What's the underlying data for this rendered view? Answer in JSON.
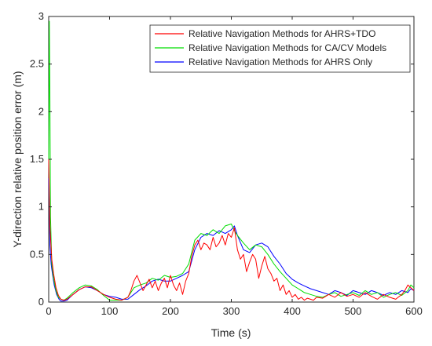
{
  "chart_data": {
    "type": "line",
    "title": "",
    "xlabel": "Time (s)",
    "ylabel": "Y-direction relative position error (m)",
    "xlim": [
      0,
      600
    ],
    "ylim": [
      0,
      3
    ],
    "xticks": [
      0,
      100,
      200,
      300,
      400,
      500,
      600
    ],
    "xtick_labels": [
      "0",
      "100",
      "200",
      "300",
      "400",
      "500",
      "600"
    ],
    "yticks": [
      0,
      0.5,
      1,
      1.5,
      2,
      2.5,
      3
    ],
    "ytick_labels": [
      "0",
      "0.5",
      "1",
      "1.5",
      "2",
      "2.5",
      "3"
    ],
    "grid": false,
    "legend_position": "top-right",
    "series": [
      {
        "name": "Relative Navigation Methods for AHRS+TDO",
        "color": "#ff0000",
        "x": [
          0,
          2,
          5,
          8,
          12,
          16,
          20,
          25,
          30,
          40,
          50,
          60,
          70,
          80,
          90,
          100,
          110,
          120,
          130,
          135,
          140,
          145,
          150,
          155,
          160,
          165,
          170,
          175,
          180,
          185,
          190,
          195,
          200,
          205,
          210,
          215,
          220,
          225,
          230,
          235,
          240,
          245,
          250,
          255,
          260,
          265,
          270,
          275,
          280,
          285,
          290,
          295,
          300,
          305,
          310,
          315,
          320,
          325,
          330,
          335,
          340,
          345,
          350,
          355,
          360,
          365,
          370,
          375,
          380,
          385,
          390,
          395,
          400,
          405,
          410,
          415,
          420,
          425,
          430,
          435,
          440,
          450,
          460,
          470,
          480,
          490,
          500,
          510,
          520,
          530,
          540,
          550,
          560,
          570,
          580,
          585,
          590,
          595,
          600
        ],
        "y": [
          1.5,
          0.8,
          0.45,
          0.3,
          0.15,
          0.07,
          0.03,
          0.02,
          0.03,
          0.08,
          0.13,
          0.16,
          0.16,
          0.12,
          0.08,
          0.05,
          0.03,
          0.02,
          0.05,
          0.12,
          0.22,
          0.28,
          0.2,
          0.12,
          0.18,
          0.24,
          0.15,
          0.22,
          0.12,
          0.2,
          0.25,
          0.15,
          0.28,
          0.18,
          0.12,
          0.2,
          0.08,
          0.22,
          0.3,
          0.48,
          0.6,
          0.65,
          0.55,
          0.62,
          0.6,
          0.55,
          0.68,
          0.58,
          0.62,
          0.7,
          0.6,
          0.72,
          0.68,
          0.78,
          0.55,
          0.45,
          0.5,
          0.32,
          0.42,
          0.5,
          0.45,
          0.25,
          0.38,
          0.48,
          0.35,
          0.3,
          0.22,
          0.25,
          0.12,
          0.18,
          0.08,
          0.12,
          0.05,
          0.08,
          0.03,
          0.05,
          0.02,
          0.04,
          0.03,
          0.02,
          0.05,
          0.04,
          0.08,
          0.05,
          0.1,
          0.06,
          0.08,
          0.05,
          0.1,
          0.06,
          0.03,
          0.08,
          0.05,
          0.03,
          0.08,
          0.12,
          0.18,
          0.15,
          0.12
        ]
      },
      {
        "name": "Relative Navigation Methods for CA/CV Models",
        "color": "#00dd00",
        "x": [
          0,
          1,
          2,
          3,
          5,
          8,
          12,
          16,
          20,
          25,
          30,
          40,
          50,
          60,
          70,
          80,
          90,
          100,
          110,
          120,
          130,
          140,
          150,
          160,
          170,
          180,
          190,
          200,
          210,
          220,
          230,
          240,
          250,
          260,
          270,
          280,
          290,
          300,
          305,
          310,
          320,
          330,
          340,
          350,
          360,
          370,
          380,
          390,
          400,
          410,
          420,
          430,
          440,
          450,
          460,
          470,
          480,
          490,
          500,
          510,
          520,
          530,
          540,
          550,
          560,
          570,
          580,
          590,
          595,
          600
        ],
        "y": [
          1.5,
          2.95,
          2.2,
          0.9,
          0.4,
          0.25,
          0.12,
          0.05,
          0.03,
          0.02,
          0.04,
          0.1,
          0.15,
          0.18,
          0.17,
          0.13,
          0.07,
          0.02,
          0.02,
          0.02,
          0.05,
          0.15,
          0.18,
          0.2,
          0.25,
          0.23,
          0.28,
          0.26,
          0.27,
          0.3,
          0.4,
          0.65,
          0.72,
          0.7,
          0.76,
          0.72,
          0.8,
          0.82,
          0.75,
          0.7,
          0.62,
          0.55,
          0.6,
          0.58,
          0.5,
          0.4,
          0.32,
          0.25,
          0.18,
          0.14,
          0.1,
          0.08,
          0.06,
          0.05,
          0.08,
          0.1,
          0.06,
          0.08,
          0.1,
          0.07,
          0.12,
          0.08,
          0.1,
          0.05,
          0.08,
          0.1,
          0.07,
          0.12,
          0.18,
          0.15
        ]
      },
      {
        "name": "Relative Navigation Methods for AHRS Only",
        "color": "#0000ff",
        "x": [
          0,
          1,
          2,
          4,
          6,
          9,
          13,
          17,
          20,
          25,
          30,
          40,
          50,
          60,
          70,
          80,
          90,
          100,
          110,
          120,
          130,
          140,
          150,
          160,
          170,
          180,
          190,
          200,
          210,
          220,
          230,
          240,
          250,
          260,
          270,
          280,
          290,
          300,
          305,
          310,
          320,
          330,
          340,
          350,
          360,
          370,
          380,
          390,
          400,
          410,
          420,
          430,
          440,
          450,
          460,
          470,
          480,
          490,
          500,
          510,
          520,
          530,
          540,
          550,
          560,
          570,
          580,
          590,
          595,
          600
        ],
        "y": [
          1.3,
          1.0,
          0.6,
          0.4,
          0.3,
          0.18,
          0.08,
          0.03,
          0.01,
          0.01,
          0.02,
          0.08,
          0.13,
          0.16,
          0.15,
          0.12,
          0.08,
          0.06,
          0.05,
          0.03,
          0.03,
          0.08,
          0.13,
          0.17,
          0.22,
          0.24,
          0.22,
          0.22,
          0.25,
          0.28,
          0.32,
          0.55,
          0.68,
          0.72,
          0.7,
          0.75,
          0.72,
          0.76,
          0.8,
          0.7,
          0.55,
          0.52,
          0.6,
          0.62,
          0.58,
          0.48,
          0.4,
          0.3,
          0.24,
          0.2,
          0.17,
          0.14,
          0.12,
          0.1,
          0.08,
          0.12,
          0.1,
          0.07,
          0.12,
          0.1,
          0.08,
          0.12,
          0.1,
          0.07,
          0.1,
          0.08,
          0.12,
          0.1,
          0.14,
          0.12
        ]
      }
    ]
  }
}
